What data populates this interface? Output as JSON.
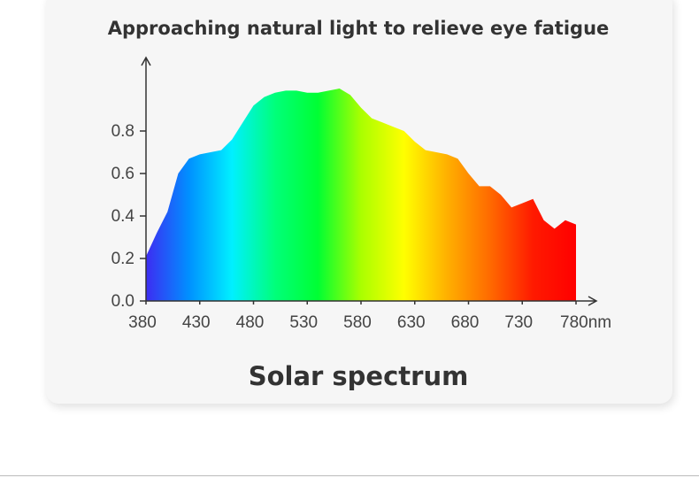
{
  "chart_data": {
    "type": "area",
    "title": "Approaching natural light to relieve eye fatigue",
    "subtitle": "Solar spectrum",
    "x": [
      380,
      390,
      400,
      410,
      420,
      430,
      440,
      450,
      460,
      470,
      480,
      490,
      500,
      510,
      520,
      530,
      540,
      550,
      560,
      570,
      580,
      590,
      600,
      610,
      620,
      630,
      640,
      650,
      660,
      670,
      680,
      690,
      700,
      710,
      720,
      730,
      740,
      750,
      760,
      770,
      780
    ],
    "values": [
      0.21,
      0.32,
      0.42,
      0.6,
      0.67,
      0.69,
      0.7,
      0.71,
      0.76,
      0.84,
      0.92,
      0.96,
      0.98,
      0.99,
      0.99,
      0.98,
      0.98,
      0.99,
      1.0,
      0.97,
      0.91,
      0.86,
      0.84,
      0.82,
      0.8,
      0.75,
      0.71,
      0.7,
      0.69,
      0.67,
      0.6,
      0.54,
      0.54,
      0.5,
      0.44,
      0.46,
      0.48,
      0.38,
      0.34,
      0.38,
      0.36
    ],
    "gradient": [
      "#3d2cf2",
      "#0090ff",
      "#00f0ff",
      "#00ff7a",
      "#00ff33",
      "#aaff00",
      "#ffff00",
      "#ffb000",
      "#ff6a00",
      "#ff1a00",
      "#ff0000"
    ],
    "xlim": [
      380,
      780
    ],
    "xticks": [
      380,
      430,
      480,
      530,
      580,
      630,
      680,
      730,
      {
        "value": 780,
        "label": "780nm"
      }
    ],
    "ylim": [
      0,
      1.1
    ],
    "yticks": [
      {
        "value": 0,
        "label": "0.0"
      },
      0.2,
      0.4,
      0.6,
      0.8
    ]
  }
}
